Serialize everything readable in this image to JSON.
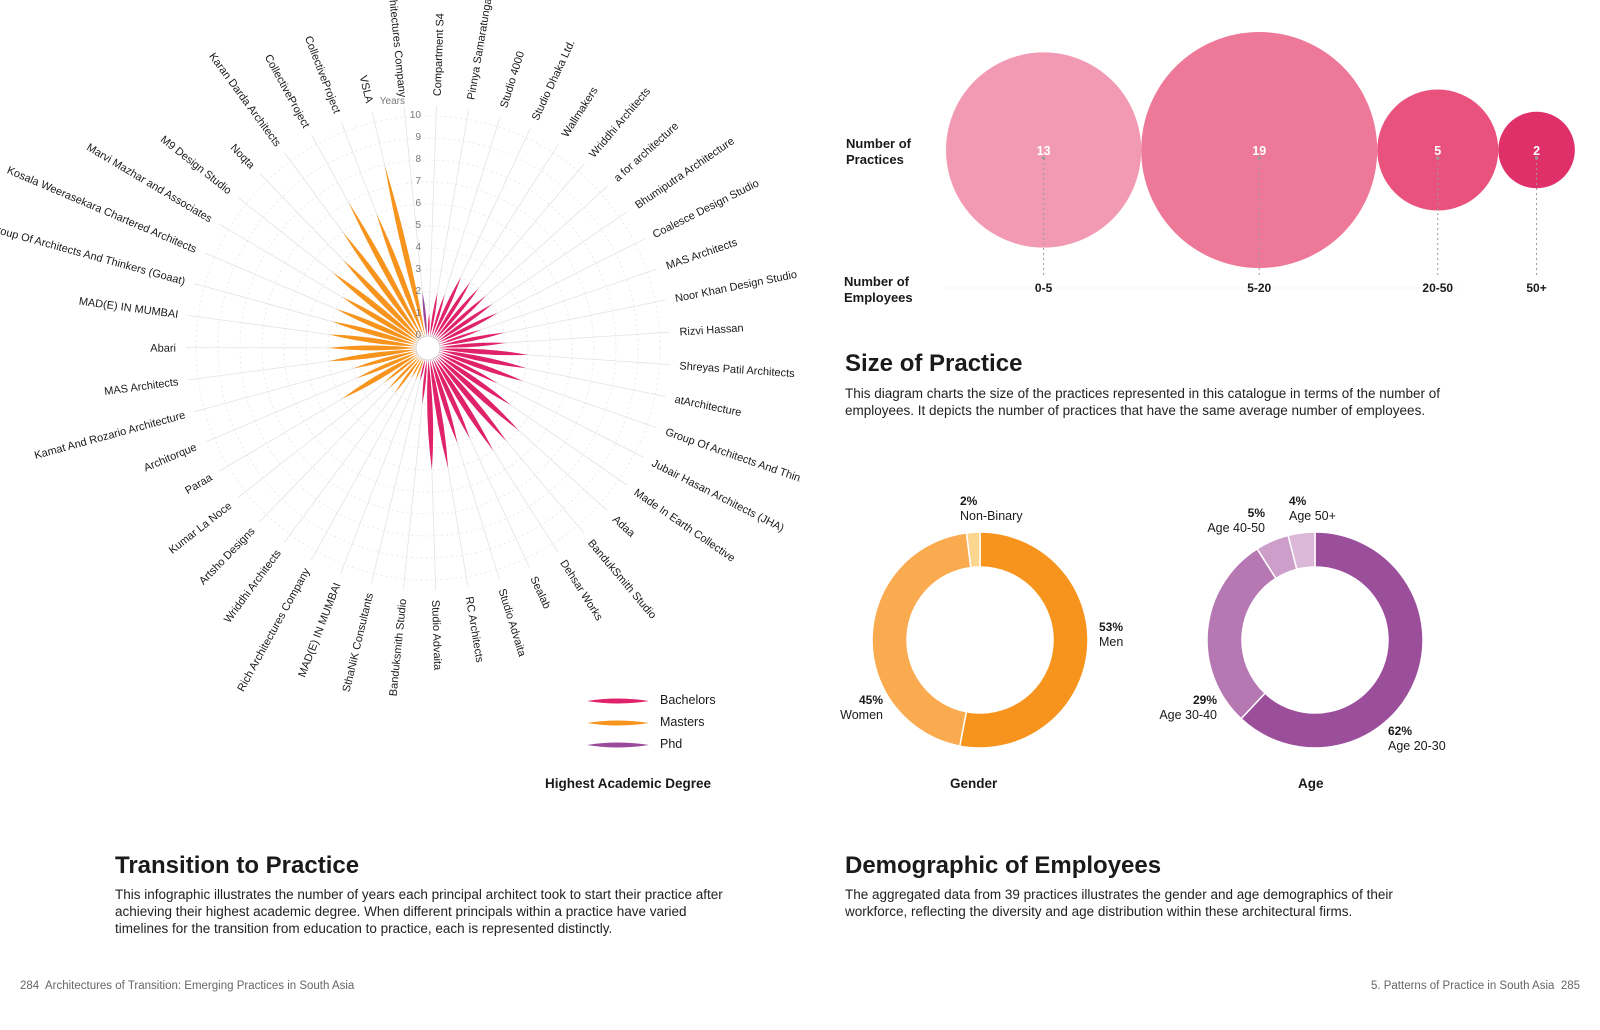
{
  "footer": {
    "left_page": "284",
    "left_title": "Architectures of Transition: Emerging Practices in South Asia",
    "right_title": "5. Patterns of Practice in South Asia",
    "right_page": "285"
  },
  "sections": {
    "transition": {
      "title": "Transition to Practice",
      "text": "This infographic illustrates the number of years each principal architect took to start their practice after achieving their highest academic degree. When different principals within a practice have varied timelines for the transition from education to practice, each is represented distinctly."
    },
    "size": {
      "title": "Size of Practice",
      "text": "This diagram charts the size of the practices represented in this catalogue in terms of the number of employees. It depicts the number of practices that have the same average number of employees."
    },
    "demographic": {
      "title": "Demographic of Employees",
      "text": "The aggregated data from 39 practices illustrates the gender and age demographics of their workforce, reflecting the diversity and age distribution within these architectural firms."
    }
  },
  "colors": {
    "bachelors": "#e0226a",
    "masters": "#f7941d",
    "phd": "#9b4a9b",
    "women": "#fbab4f",
    "men": "#f7941d",
    "nonbinary": "#fcd68e",
    "age2030": "#9b4f9b",
    "age3040": "#b678b2",
    "age4050": "#cc9ec9",
    "age50": "#dcb8d8",
    "bubble0": "#f29ab4",
    "bubble1": "#ed7898",
    "bubble2": "#e8527c",
    "bubble3": "#e0306a"
  },
  "chart_data": [
    {
      "type": "radial-bar",
      "title": "Highest Academic Degree",
      "axis_label": "Years",
      "ticks": [
        "0",
        "1",
        "2",
        "3",
        "4",
        "5",
        "6",
        "7",
        "8",
        "9",
        "10"
      ],
      "rlim": [
        0,
        10
      ],
      "legend": [
        {
          "name": "Bachelors",
          "key": "bachelors"
        },
        {
          "name": "Masters",
          "key": "masters"
        },
        {
          "name": "Phd",
          "key": "phd"
        }
      ],
      "items": [
        {
          "label": "Compartment S4",
          "value": 1,
          "degree": "bachelors"
        },
        {
          "label": "Pinnya Samaratunga Architects",
          "value": 2,
          "degree": "bachelors"
        },
        {
          "label": "Studio 4000",
          "value": 2,
          "degree": "bachelors"
        },
        {
          "label": "Studio Dhaka Ltd.",
          "value": 3,
          "degree": "bachelors"
        },
        {
          "label": "Wallmakers",
          "value": 3,
          "degree": "bachelors"
        },
        {
          "label": "Wriddhi Architects",
          "value": 3,
          "degree": "bachelors"
        },
        {
          "label": "a for architecture",
          "value": 3,
          "degree": "bachelors"
        },
        {
          "label": "Bhumiputra Architecture",
          "value": 3,
          "degree": "bachelors"
        },
        {
          "label": "Coalesce Design Studio",
          "value": 3,
          "degree": "bachelors"
        },
        {
          "label": "MAS Architects",
          "value": 2,
          "degree": "bachelors"
        },
        {
          "label": "Noor Khan Design Studio",
          "value": 3,
          "degree": "bachelors"
        },
        {
          "label": "Rizvi Hassan",
          "value": 3,
          "degree": "bachelors"
        },
        {
          "label": "Shreyas Patil Architects",
          "value": 4,
          "degree": "bachelors"
        },
        {
          "label": "atArchitecture",
          "value": 4,
          "degree": "bachelors"
        },
        {
          "label": "Group Of Architects And Thinkers (Goaat)",
          "value": 4,
          "degree": "bachelors"
        },
        {
          "label": "Jubair Hasan Architects (JHA)",
          "value": 3,
          "degree": "bachelors"
        },
        {
          "label": "Made In Earth Collective",
          "value": 4,
          "degree": "bachelors"
        },
        {
          "label": "Adaa",
          "value": 5,
          "degree": "bachelors"
        },
        {
          "label": "BandukSmith Studio",
          "value": 5,
          "degree": "bachelors"
        },
        {
          "label": "Dehsar Works",
          "value": 5,
          "degree": "bachelors"
        },
        {
          "label": "Sealab",
          "value": 4,
          "degree": "bachelors"
        },
        {
          "label": "Studio Advaita",
          "value": 4,
          "degree": "bachelors"
        },
        {
          "label": "RC Architects",
          "value": 5,
          "degree": "bachelors"
        },
        {
          "label": "Studio Advaita",
          "value": 5,
          "degree": "bachelors"
        },
        {
          "label": "Banduksmith Studio",
          "value": 2,
          "degree": "bachelors"
        },
        {
          "label": "SthaNiK Consultants",
          "value": 1,
          "degree": "bachelors"
        },
        {
          "label": "MAD(E) IN MUMBAI",
          "value": 1,
          "degree": "masters"
        },
        {
          "label": "Rich Architectures Company",
          "value": 1,
          "degree": "masters"
        },
        {
          "label": "Wriddhi Architects",
          "value": 2,
          "degree": "masters"
        },
        {
          "label": "Artsho Designs",
          "value": 2,
          "degree": "masters"
        },
        {
          "label": "Kumar La Noce",
          "value": 2,
          "degree": "masters"
        },
        {
          "label": "Paraa",
          "value": 4,
          "degree": "masters"
        },
        {
          "label": "Architorque",
          "value": 3,
          "degree": "masters"
        },
        {
          "label": "Kamat And Rozario Architecture",
          "value": 3,
          "degree": "masters"
        },
        {
          "label": "MAS Architects",
          "value": 4,
          "degree": "masters"
        },
        {
          "label": "Abari",
          "value": 4,
          "degree": "masters"
        },
        {
          "label": "MAD(E) IN MUMBAI",
          "value": 4,
          "degree": "masters"
        },
        {
          "label": "Group Of Architects And Thinkers (Goaat)",
          "value": 4,
          "degree": "masters"
        },
        {
          "label": "Kosala Weerasekara Chartered Architects",
          "value": 4,
          "degree": "masters"
        },
        {
          "label": "Marvi Mazhar and Associates",
          "value": 4,
          "degree": "masters"
        },
        {
          "label": "M9 Design Studio",
          "value": 5,
          "degree": "masters"
        },
        {
          "label": "Noqta",
          "value": 5,
          "degree": "masters"
        },
        {
          "label": "Karan Darda Architects",
          "value": 6,
          "degree": "masters"
        },
        {
          "label": "CollectiveProject",
          "value": 7,
          "degree": "masters"
        },
        {
          "label": "CollectiveProject",
          "value": 6,
          "degree": "masters"
        },
        {
          "label": "VSLA",
          "value": 8,
          "degree": "masters"
        },
        {
          "label": "Rich Architectures Company",
          "value": 2,
          "degree": "phd"
        }
      ]
    },
    {
      "type": "bubble",
      "ylabel": "Number of Practices",
      "xlabel": "Number of Employees",
      "categories": [
        "0-5",
        "5-20",
        "20-50",
        "50+"
      ],
      "values": [
        13,
        19,
        5,
        2
      ]
    },
    {
      "type": "pie",
      "title": "Gender",
      "slices": [
        {
          "label": "Men",
          "value": 53,
          "display": "53%",
          "key": "men"
        },
        {
          "label": "Women",
          "value": 45,
          "display": "45%",
          "key": "women"
        },
        {
          "label": "Non-Binary",
          "value": 2,
          "display": "2%",
          "key": "nonbinary"
        }
      ]
    },
    {
      "type": "pie",
      "title": "Age",
      "slices": [
        {
          "label": "Age 20-30",
          "value": 62,
          "display": "62%",
          "key": "age2030"
        },
        {
          "label": "Age 30-40",
          "value": 29,
          "display": "29%",
          "key": "age3040"
        },
        {
          "label": "Age 40-50",
          "value": 5,
          "display": "5%",
          "key": "age4050"
        },
        {
          "label": "Age 50+",
          "value": 4,
          "display": "4%",
          "key": "age50"
        }
      ]
    }
  ]
}
